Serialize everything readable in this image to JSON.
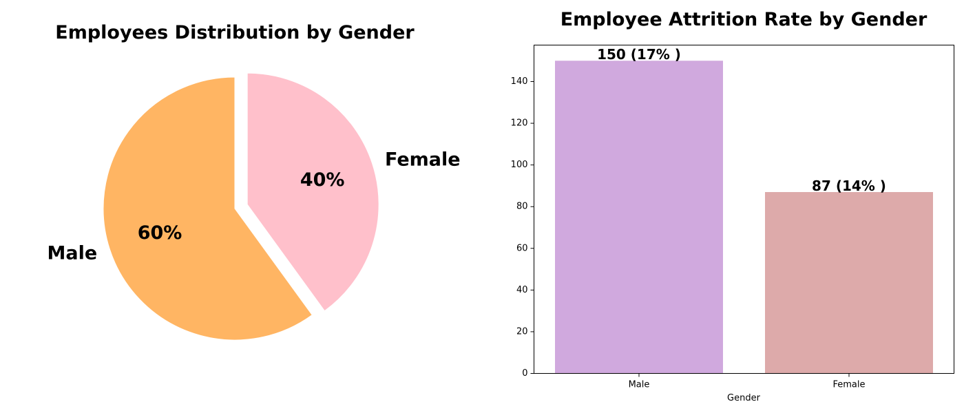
{
  "chart_data": [
    {
      "type": "pie",
      "title": "Employees Distribution by Gender",
      "slices": [
        {
          "label": "Male",
          "value": 60,
          "pct_label": "60%",
          "color": "#FFB563",
          "explode": false
        },
        {
          "label": "Female",
          "value": 40,
          "pct_label": "40%",
          "color": "#FFC0CB",
          "explode": true
        }
      ]
    },
    {
      "type": "bar",
      "title": "Employee Attrition Rate by Gender",
      "xlabel": "Gender",
      "ylabel": "",
      "categories": [
        "Male",
        "Female"
      ],
      "values": [
        150,
        87
      ],
      "data_labels": [
        "150 (17% )",
        "87 (14% )"
      ],
      "colors": [
        "#D0A9DE",
        "#DDAAAA"
      ],
      "ylim": [
        0,
        157.5
      ],
      "yticks": [
        0,
        20,
        40,
        60,
        80,
        100,
        120,
        140
      ],
      "grid": false,
      "legend": "none"
    }
  ]
}
